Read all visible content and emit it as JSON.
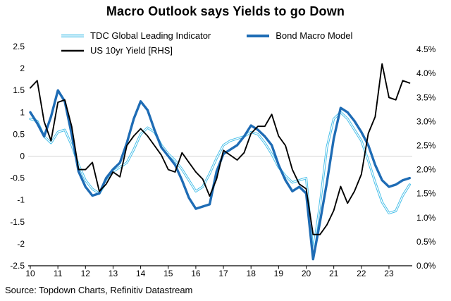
{
  "chart_data": {
    "type": "line",
    "title": "Macro Outlook says Yields to go Down",
    "source": "Source: Topdown Charts, Refinitiv Datastream",
    "grid": "zero-line-only",
    "legend_position": "top-left",
    "x_ticks": [
      "10",
      "11",
      "12",
      "13",
      "14",
      "15",
      "16",
      "17",
      "18",
      "19",
      "20",
      "21",
      "22",
      "23"
    ],
    "x_range": [
      2010,
      2024
    ],
    "left_axis": {
      "min": -2.5,
      "max": 2.5,
      "step": 0.5,
      "ticks": [
        "2.5",
        "2",
        "1.5",
        "1",
        "0.5",
        "0",
        "-0.5",
        "-1",
        "-1.5",
        "-2",
        "-2.5"
      ]
    },
    "right_axis": {
      "min": 0.0,
      "max": 4.5,
      "step": 0.5,
      "ticks": [
        "4.5%",
        "4.0%",
        "3.5%",
        "3.0%",
        "2.5%",
        "2.0%",
        "1.5%",
        "1.0%",
        "0.5%",
        "0.0%"
      ]
    },
    "x": [
      2010.0,
      2010.25,
      2010.5,
      2010.75,
      2011.0,
      2011.25,
      2011.5,
      2011.75,
      2012.0,
      2012.25,
      2012.5,
      2012.75,
      2013.0,
      2013.25,
      2013.5,
      2013.75,
      2014.0,
      2014.25,
      2014.5,
      2014.75,
      2015.0,
      2015.25,
      2015.5,
      2015.75,
      2016.0,
      2016.25,
      2016.5,
      2016.75,
      2017.0,
      2017.25,
      2017.5,
      2017.75,
      2018.0,
      2018.25,
      2018.5,
      2018.75,
      2019.0,
      2019.25,
      2019.5,
      2019.75,
      2020.0,
      2020.25,
      2020.5,
      2020.75,
      2021.0,
      2021.25,
      2021.5,
      2021.75,
      2022.0,
      2022.25,
      2022.5,
      2022.75,
      2023.0,
      2023.25,
      2023.5,
      2023.75
    ],
    "series": [
      {
        "name": "TDC Global Leading Indicator",
        "axis": "left",
        "color": "#45BEE8",
        "style": "double",
        "values": [
          0.85,
          0.8,
          0.45,
          0.3,
          0.55,
          0.6,
          0.25,
          -0.2,
          -0.55,
          -0.75,
          -0.85,
          -0.6,
          -0.35,
          -0.25,
          -0.15,
          0.15,
          0.5,
          0.65,
          0.55,
          0.25,
          0.05,
          -0.1,
          -0.3,
          -0.55,
          -0.8,
          -0.7,
          -0.4,
          -0.05,
          0.25,
          0.35,
          0.4,
          0.45,
          0.55,
          0.5,
          0.3,
          0.05,
          -0.25,
          -0.45,
          -0.6,
          -0.55,
          -0.5,
          -2.2,
          -1.1,
          0.2,
          0.85,
          1.0,
          0.85,
          0.6,
          0.35,
          -0.1,
          -0.6,
          -1.05,
          -1.3,
          -1.25,
          -0.9,
          -0.65
        ]
      },
      {
        "name": "Bond Macro Model",
        "axis": "left",
        "color": "#1E6CB5",
        "style": "thick",
        "values": [
          1.0,
          0.75,
          0.45,
          0.9,
          1.5,
          1.25,
          0.5,
          -0.35,
          -0.7,
          -0.9,
          -0.85,
          -0.5,
          -0.3,
          -0.15,
          0.3,
          0.85,
          1.25,
          1.05,
          0.6,
          0.2,
          0.0,
          -0.2,
          -0.55,
          -0.95,
          -1.2,
          -1.15,
          -1.1,
          -0.35,
          0.05,
          0.15,
          0.25,
          0.45,
          0.7,
          0.6,
          0.45,
          0.25,
          -0.2,
          -0.55,
          -0.8,
          -0.7,
          -0.85,
          -2.35,
          -1.5,
          -0.6,
          0.4,
          1.1,
          1.0,
          0.8,
          0.55,
          0.25,
          -0.2,
          -0.55,
          -0.7,
          -0.65,
          -0.55,
          -0.5
        ]
      },
      {
        "name": "US 10yr Yield [RHS]",
        "axis": "right",
        "color": "#000000",
        "style": "normal",
        "values": [
          3.7,
          3.85,
          3.0,
          2.6,
          3.4,
          3.45,
          2.9,
          2.0,
          2.0,
          2.15,
          1.55,
          1.7,
          1.95,
          1.85,
          2.5,
          2.7,
          2.85,
          2.7,
          2.5,
          2.3,
          2.0,
          1.95,
          2.35,
          2.15,
          1.95,
          1.8,
          1.45,
          1.8,
          2.4,
          2.3,
          2.2,
          2.35,
          2.75,
          2.9,
          2.9,
          3.15,
          2.7,
          2.5,
          2.0,
          1.7,
          1.6,
          0.65,
          0.65,
          0.85,
          1.15,
          1.65,
          1.3,
          1.55,
          1.9,
          2.75,
          3.1,
          4.2,
          3.5,
          3.45,
          3.85,
          3.8
        ]
      }
    ]
  }
}
